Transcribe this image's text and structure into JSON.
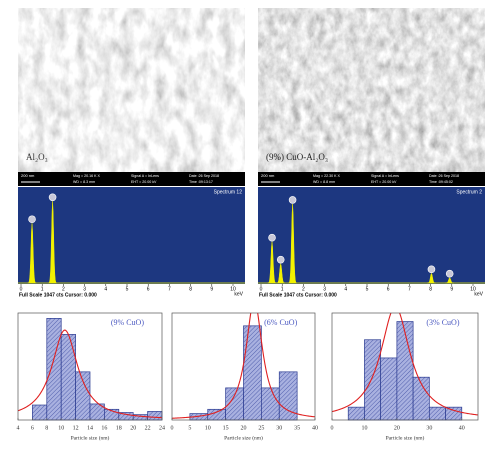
{
  "sem": [
    {
      "label": "Al₂O₃",
      "scale_bar": "200 nm",
      "info": [
        "Mag = 20.16 K X",
        "WD = 8.3 mm",
        "Signal A = InLens",
        "EHT = 20.00 kV",
        "Date :26 Sep 2018",
        "Time :09:13:17"
      ]
    },
    {
      "label": "(9%) CuO-Al₂O₃",
      "scale_bar": "200 nm",
      "info": [
        "Mag = 22.30 K X",
        "WD = 8.8 mm",
        "Signal A = InLens",
        "EHT = 20.00 kV",
        "Date :26 Sep 2018",
        "Time :09:45:02"
      ]
    }
  ],
  "eds": [
    {
      "title": "Spectrum 12",
      "footer": "Full Scale 1047 cts Cursor: 0.000",
      "unit": "keV",
      "full_scale": 1047,
      "xlim": [
        0,
        10
      ],
      "xticks": [
        0,
        1,
        2,
        3,
        4,
        5,
        6,
        7,
        8,
        9,
        10
      ],
      "color": "#f2f200",
      "peaks": [
        {
          "energy": 0.52,
          "height": 680
        },
        {
          "energy": 1.49,
          "height": 930
        }
      ]
    },
    {
      "title": "Spectrum 2",
      "footer": "Full Scale 1047 cts Cursor: 0.000",
      "unit": "keV",
      "full_scale": 1047,
      "xlim": [
        0,
        10
      ],
      "xticks": [
        0,
        1,
        2,
        3,
        4,
        5,
        6,
        7,
        8,
        9,
        10
      ],
      "color": "#f2f200",
      "peaks": [
        {
          "energy": 0.52,
          "height": 470
        },
        {
          "energy": 0.93,
          "height": 220
        },
        {
          "energy": 1.49,
          "height": 900
        },
        {
          "energy": 8.04,
          "height": 110
        },
        {
          "energy": 8.9,
          "height": 60
        }
      ]
    }
  ],
  "histograms": [
    {
      "type": "histogram",
      "label": "(9% CuO)",
      "x_label": "Particle size (nm)",
      "bins": [
        6,
        8,
        10,
        12,
        14,
        16,
        18,
        20,
        22,
        24
      ],
      "counts": [
        14,
        95,
        80,
        45,
        15,
        10,
        7,
        5,
        8
      ],
      "xlim": [
        4,
        24
      ],
      "xticks": [
        4,
        6,
        8,
        10,
        12,
        14,
        16,
        18,
        20,
        22,
        24
      ],
      "ylim": [
        0,
        100
      ],
      "color": "#a9b1e0",
      "fit_color": "#e02020",
      "fit": {
        "center": 10.5,
        "width": 2.2,
        "peak": 84
      }
    },
    {
      "type": "histogram",
      "label": "(6% CuO)",
      "x_label": "Particle size (nm)",
      "bins": [
        5,
        10,
        15,
        20,
        25,
        30,
        35
      ],
      "counts": [
        6,
        10,
        30,
        88,
        30,
        45
      ],
      "xlim": [
        0,
        40
      ],
      "xticks": [
        0,
        5,
        10,
        15,
        20,
        25,
        30,
        35,
        40
      ],
      "ylim": [
        0,
        100
      ],
      "color": "#a9b1e0",
      "fit_color": "#e02020",
      "fit": {
        "center": 23,
        "width": 2.8,
        "peak": 112
      }
    },
    {
      "type": "histogram",
      "label": "(3% CuO)",
      "x_label": "Particle size (nm)",
      "bins": [
        5,
        10,
        15,
        20,
        25,
        30,
        35,
        40
      ],
      "counts": [
        12,
        75,
        58,
        92,
        40,
        12,
        12
      ],
      "xlim": [
        0,
        45
      ],
      "xticks": [
        0,
        10,
        20,
        30,
        40
      ],
      "ylim": [
        0,
        100
      ],
      "color": "#a9b1e0",
      "fit_color": "#e02020",
      "fit": {
        "center": 19.5,
        "width": 5.5,
        "peak": 106
      }
    }
  ]
}
